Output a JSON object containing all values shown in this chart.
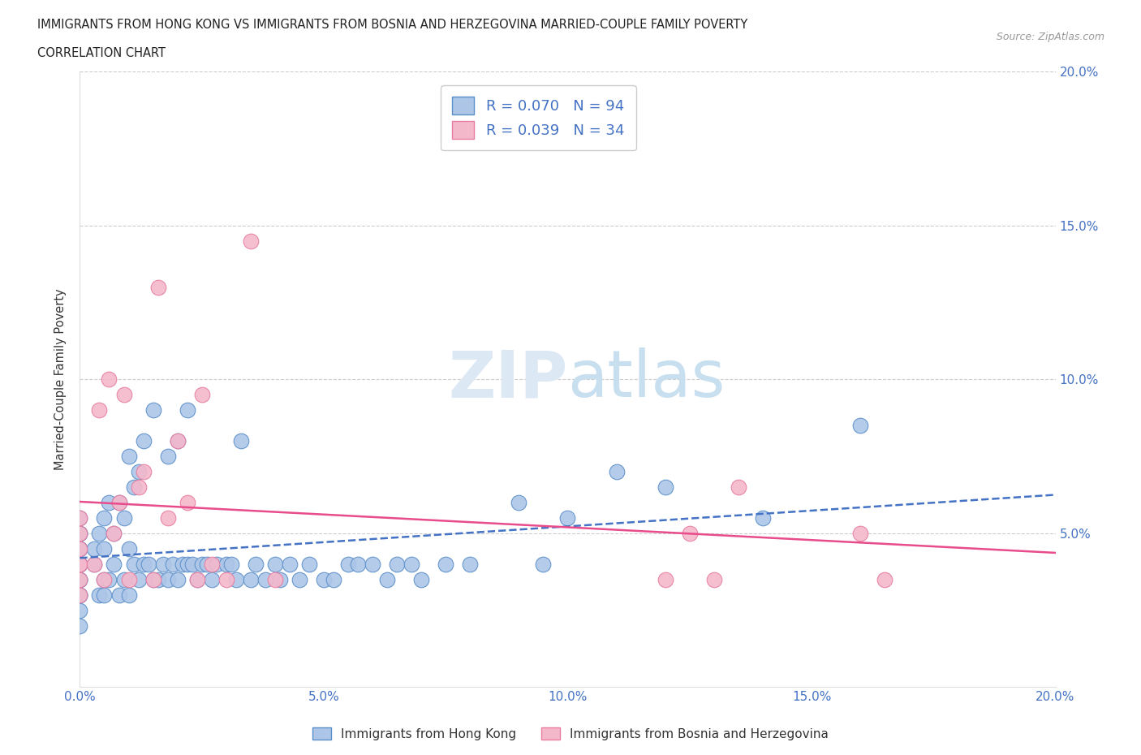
{
  "title_line1": "IMMIGRANTS FROM HONG KONG VS IMMIGRANTS FROM BOSNIA AND HERZEGOVINA MARRIED-COUPLE FAMILY POVERTY",
  "title_line2": "CORRELATION CHART",
  "source_text": "Source: ZipAtlas.com",
  "ylabel": "Married-Couple Family Poverty",
  "xlim": [
    0.0,
    0.2
  ],
  "ylim": [
    0.0,
    0.2
  ],
  "xtick_labels": [
    "0.0%",
    "5.0%",
    "10.0%",
    "15.0%",
    "20.0%"
  ],
  "xtick_vals": [
    0.0,
    0.05,
    0.1,
    0.15,
    0.2
  ],
  "ytick_labels": [
    "5.0%",
    "10.0%",
    "15.0%",
    "20.0%"
  ],
  "ytick_vals": [
    0.05,
    0.1,
    0.15,
    0.2
  ],
  "hk_color": "#adc6e8",
  "bh_color": "#f4b8cb",
  "hk_edge_color": "#5b8fc9",
  "bh_edge_color": "#e87da0",
  "hk_line_color": "#4472c4",
  "bh_line_color": "#e84c8b",
  "tick_color": "#4472c4",
  "R_hk": 0.07,
  "N_hk": 94,
  "R_bh": 0.039,
  "N_bh": 34,
  "legend_label_hk": "Immigrants from Hong Kong",
  "legend_label_bh": "Immigrants from Bosnia and Herzegovina",
  "hk_x": [
    0.0,
    0.0,
    0.0,
    0.0,
    0.0,
    0.0,
    0.0,
    0.0,
    0.0,
    0.0,
    0.0,
    0.0,
    0.0,
    0.0,
    0.0,
    0.0,
    0.0,
    0.0,
    0.0,
    0.0,
    0.003,
    0.003,
    0.004,
    0.004,
    0.005,
    0.005,
    0.005,
    0.005,
    0.006,
    0.006,
    0.007,
    0.007,
    0.008,
    0.008,
    0.009,
    0.009,
    0.01,
    0.01,
    0.01,
    0.011,
    0.011,
    0.012,
    0.012,
    0.013,
    0.013,
    0.014,
    0.015,
    0.015,
    0.016,
    0.017,
    0.018,
    0.018,
    0.019,
    0.02,
    0.02,
    0.021,
    0.022,
    0.022,
    0.023,
    0.024,
    0.025,
    0.026,
    0.027,
    0.028,
    0.03,
    0.031,
    0.032,
    0.033,
    0.035,
    0.036,
    0.038,
    0.04,
    0.041,
    0.043,
    0.045,
    0.047,
    0.05,
    0.052,
    0.055,
    0.057,
    0.06,
    0.063,
    0.065,
    0.068,
    0.07,
    0.075,
    0.08,
    0.09,
    0.095,
    0.1,
    0.11,
    0.12,
    0.14,
    0.16
  ],
  "hk_y": [
    0.02,
    0.025,
    0.03,
    0.03,
    0.03,
    0.035,
    0.035,
    0.035,
    0.04,
    0.04,
    0.04,
    0.04,
    0.04,
    0.045,
    0.045,
    0.045,
    0.05,
    0.05,
    0.05,
    0.055,
    0.04,
    0.045,
    0.03,
    0.05,
    0.03,
    0.035,
    0.045,
    0.055,
    0.035,
    0.06,
    0.04,
    0.05,
    0.03,
    0.06,
    0.035,
    0.055,
    0.03,
    0.045,
    0.075,
    0.04,
    0.065,
    0.035,
    0.07,
    0.04,
    0.08,
    0.04,
    0.035,
    0.09,
    0.035,
    0.04,
    0.035,
    0.075,
    0.04,
    0.035,
    0.08,
    0.04,
    0.04,
    0.09,
    0.04,
    0.035,
    0.04,
    0.04,
    0.035,
    0.04,
    0.04,
    0.04,
    0.035,
    0.08,
    0.035,
    0.04,
    0.035,
    0.04,
    0.035,
    0.04,
    0.035,
    0.04,
    0.035,
    0.035,
    0.04,
    0.04,
    0.04,
    0.035,
    0.04,
    0.04,
    0.035,
    0.04,
    0.04,
    0.06,
    0.04,
    0.055,
    0.07,
    0.065,
    0.055,
    0.085
  ],
  "bh_x": [
    0.0,
    0.0,
    0.0,
    0.0,
    0.0,
    0.0,
    0.0,
    0.003,
    0.004,
    0.005,
    0.006,
    0.007,
    0.008,
    0.009,
    0.01,
    0.012,
    0.013,
    0.015,
    0.016,
    0.018,
    0.02,
    0.022,
    0.024,
    0.025,
    0.027,
    0.03,
    0.035,
    0.04,
    0.12,
    0.125,
    0.13,
    0.135,
    0.16,
    0.165
  ],
  "bh_y": [
    0.03,
    0.035,
    0.04,
    0.04,
    0.045,
    0.05,
    0.055,
    0.04,
    0.09,
    0.035,
    0.1,
    0.05,
    0.06,
    0.095,
    0.035,
    0.065,
    0.07,
    0.035,
    0.13,
    0.055,
    0.08,
    0.06,
    0.035,
    0.095,
    0.04,
    0.035,
    0.145,
    0.035,
    0.035,
    0.05,
    0.035,
    0.065,
    0.05,
    0.035
  ]
}
